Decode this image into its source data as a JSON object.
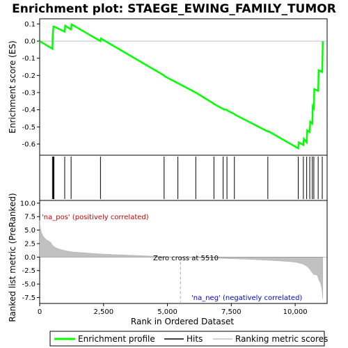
{
  "chart_data": {
    "type": "line",
    "title": "Enrichment plot: STAEGE_EWING_FAMILY_TUMOR",
    "xlabel": "Rank in Ordered Dataset",
    "ylabel_top": "Enrichment score (ES)",
    "ylabel_bottom": "Ranked list metric (PreRanked)",
    "xlim": [
      0,
      11250
    ],
    "x_ticks": [
      0,
      2500,
      5000,
      7500,
      10000
    ],
    "x_tick_labels": [
      "0",
      "2,500",
      "5,000",
      "7,500",
      "10,000"
    ],
    "es_ylim": [
      -0.665,
      0.13
    ],
    "es_ticks": [
      0.1,
      0.0,
      -0.1,
      -0.2,
      -0.3,
      -0.4,
      -0.5,
      -0.6
    ],
    "es_tick_labels": [
      "0.1",
      "0.0",
      "-0.1",
      "-0.2",
      "-0.3",
      "-0.4",
      "-0.5",
      "-0.6"
    ],
    "metric_ylim": [
      -8.6,
      10.5
    ],
    "metric_ticks": [
      10.0,
      7.5,
      5.0,
      2.5,
      0.0,
      -2.5,
      -5.0,
      -7.5
    ],
    "metric_tick_labels": [
      "10.0",
      "7.5",
      "5.0",
      "2.5",
      "0.0",
      "-2.5",
      "-5.0",
      "-7.5"
    ],
    "enrichment_profile": {
      "x": [
        0,
        500,
        510,
        540,
        560,
        980,
        1000,
        1230,
        1250,
        2380,
        2400,
        4870,
        4890,
        5410,
        5430,
        6110,
        6130,
        6820,
        6840,
        7180,
        7200,
        7330,
        7350,
        7620,
        7640,
        8930,
        8950,
        10120,
        10140,
        10320,
        10340,
        10450,
        10470,
        10570,
        10590,
        10670,
        10690,
        10730,
        10750,
        10900,
        10920,
        11060,
        11080
      ],
      "es": [
        0.0,
        -0.045,
        0.025,
        0.085,
        0.085,
        0.055,
        0.09,
        0.068,
        0.097,
        0.0,
        0.015,
        -0.2,
        -0.205,
        -0.245,
        -0.247,
        -0.3,
        -0.302,
        -0.365,
        -0.368,
        -0.395,
        -0.398,
        -0.4,
        -0.405,
        -0.425,
        -0.428,
        -0.527,
        -0.525,
        -0.625,
        -0.59,
        -0.605,
        -0.57,
        -0.59,
        -0.52,
        -0.53,
        -0.47,
        -0.48,
        -0.38,
        -0.39,
        -0.28,
        -0.29,
        -0.17,
        -0.18,
        0.0
      ]
    },
    "hits": [
      500,
      530,
      560,
      980,
      1230,
      2380,
      4870,
      5410,
      6110,
      6820,
      7180,
      7330,
      7620,
      8930,
      10120,
      10320,
      10450,
      10570,
      10670,
      10730,
      10900,
      11060
    ],
    "ranked_metric": {
      "x": [
        0,
        20,
        60,
        120,
        200,
        300,
        420,
        500,
        600,
        750,
        900,
        1100,
        1300,
        1600,
        2000,
        2500,
        3000,
        3500,
        4000,
        4500,
        5000,
        5510,
        6000,
        6500,
        7000,
        7500,
        8000,
        8500,
        9000,
        9500,
        9800,
        10000,
        10150,
        10300,
        10420,
        10500,
        10580,
        10650,
        10720,
        10800,
        10870,
        10930,
        10990,
        11030,
        11060,
        11080
      ],
      "values": [
        6.8,
        5.7,
        4.7,
        4.0,
        3.5,
        3.1,
        2.8,
        2.2,
        1.8,
        1.5,
        1.3,
        1.1,
        0.95,
        0.85,
        0.7,
        0.55,
        0.45,
        0.35,
        0.25,
        0.15,
        0.07,
        0.0,
        -0.08,
        -0.15,
        -0.22,
        -0.3,
        -0.38,
        -0.48,
        -0.6,
        -0.75,
        -0.85,
        -0.95,
        -1.1,
        -1.3,
        -1.6,
        -1.9,
        -2.3,
        -2.8,
        -3.2,
        -3.3,
        -3.4,
        -4.3,
        -4.8,
        -5.5,
        -6.5,
        -7.8
      ]
    },
    "annotations": {
      "pos_label": "'na_pos' (positively correlated)",
      "neg_label": "'na_neg' (negatively correlated)",
      "zero_cross": "Zero cross at 5510",
      "zero_cross_x": 5510
    },
    "colors": {
      "profile": "#00ff00",
      "hits": "#000000",
      "metric_fill": "#c0c0c0",
      "pos_text": "#cc0000",
      "neg_text": "#0000cc",
      "zero_line": "#aaaaaa"
    },
    "heat_bar": {
      "segments": [
        {
          "from": 0,
          "to": 1550,
          "color": "#e8232b"
        },
        {
          "from": 1550,
          "to": 2400,
          "color": "#f2727a"
        },
        {
          "from": 2400,
          "to": 3700,
          "color": "#f79aa0"
        },
        {
          "from": 3700,
          "to": 5400,
          "color": "#f9c4de"
        },
        {
          "from": 5400,
          "to": 7600,
          "color": "#d8d0f8"
        },
        {
          "from": 7600,
          "to": 8800,
          "color": "#c0b8f4"
        },
        {
          "from": 8800,
          "to": 9550,
          "color": "#8f84ee"
        },
        {
          "from": 9550,
          "to": 10400,
          "color": "#5a48e6"
        },
        {
          "from": 10400,
          "to": 11080,
          "color": "#2418d8"
        }
      ]
    },
    "legend": {
      "position": "bottom",
      "items": [
        {
          "label": "Enrichment profile",
          "kind": "green-line"
        },
        {
          "label": "Hits",
          "kind": "black-line"
        },
        {
          "label": "Ranking metric scores",
          "kind": "gray-line"
        }
      ]
    }
  }
}
